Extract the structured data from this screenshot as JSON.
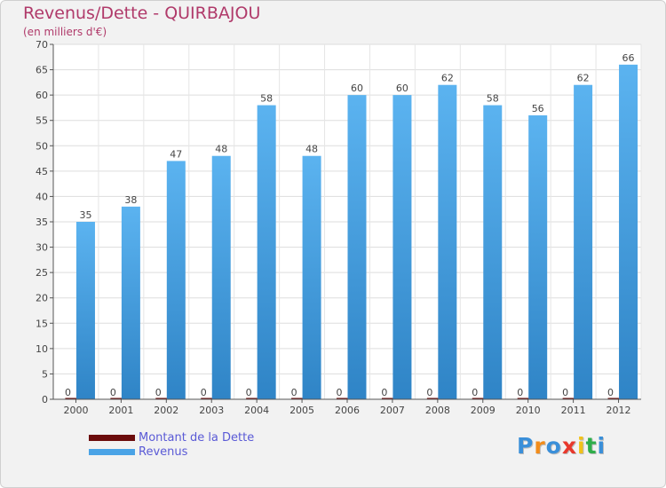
{
  "chart_data": {
    "type": "bar",
    "title": "Revenus/Dette - QUIRBAJOU",
    "subtitle": "(en milliers d'€)",
    "categories": [
      "2000",
      "2001",
      "2002",
      "2003",
      "2004",
      "2005",
      "2006",
      "2007",
      "2008",
      "2009",
      "2010",
      "2011",
      "2012"
    ],
    "series": [
      {
        "name": "Montant de la Dette",
        "color": "#6b0c0c",
        "values": [
          0,
          0,
          0,
          0,
          0,
          0,
          0,
          0,
          0,
          0,
          0,
          0,
          0
        ]
      },
      {
        "name": "Revenus",
        "color": "#4aa3e6",
        "values": [
          35,
          38,
          47,
          48,
          58,
          48,
          60,
          60,
          62,
          58,
          56,
          62,
          66
        ]
      }
    ],
    "ylim": [
      0,
      70
    ],
    "yticks": [
      0,
      5,
      10,
      15,
      20,
      25,
      30,
      35,
      40,
      45,
      50,
      55,
      60,
      65,
      70
    ],
    "grid": true,
    "legend_position": "bottom-left"
  },
  "logo": {
    "text": "Proxiti",
    "colors": [
      "#3a8fd9",
      "#f28c1a",
      "#3a8fd9",
      "#e8382c",
      "#f2c21a",
      "#2fae4a",
      "#3a8fd9"
    ]
  }
}
